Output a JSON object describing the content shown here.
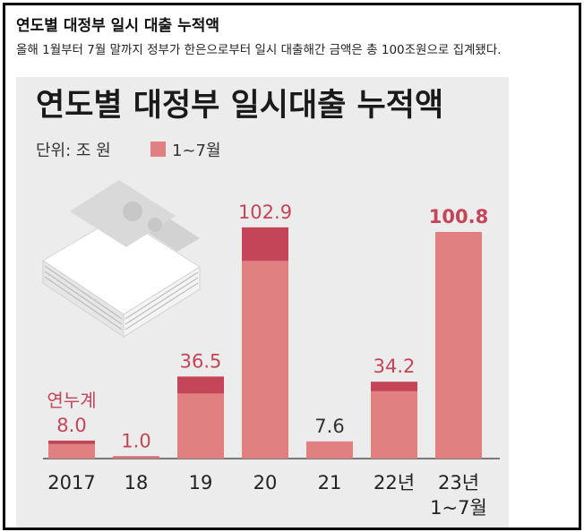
{
  "heading": "연도별 대정부 일시 대출 누적액",
  "subheading": "올해 1월부터 7월 말까지 정부가 한은으로부터 일시 대출해간 금액은 총 100조원으로 집계됐다.",
  "chart_data": {
    "type": "bar",
    "title": "연도별 대정부 일시대출 누적액",
    "unit_label": "단위: 조 원",
    "legend": [
      {
        "label": "1~7월",
        "color": "#e08080"
      }
    ],
    "annotation": "연누계",
    "categories": [
      "2017",
      "18",
      "19",
      "20",
      "21",
      "22년",
      "23년\n1~7월"
    ],
    "series": [
      {
        "name": "1~7월",
        "color": "#e08080",
        "values": [
          6.5,
          0.5,
          29.0,
          88.0,
          7.6,
          30.0,
          100.8
        ]
      },
      {
        "name": "연누계",
        "color": "#c44558",
        "values": [
          8.0,
          1.0,
          36.5,
          102.9,
          7.6,
          34.2,
          100.8
        ]
      }
    ],
    "value_labels": [
      "8.0",
      "1.0",
      "36.5",
      "102.9",
      "7.6",
      "34.2",
      "100.8"
    ],
    "label_colors": [
      "#c44558",
      "#c44558",
      "#c44558",
      "#c44558",
      "#333333",
      "#c44558",
      "#c44558"
    ],
    "ylim": [
      0,
      110
    ],
    "grid": false
  }
}
